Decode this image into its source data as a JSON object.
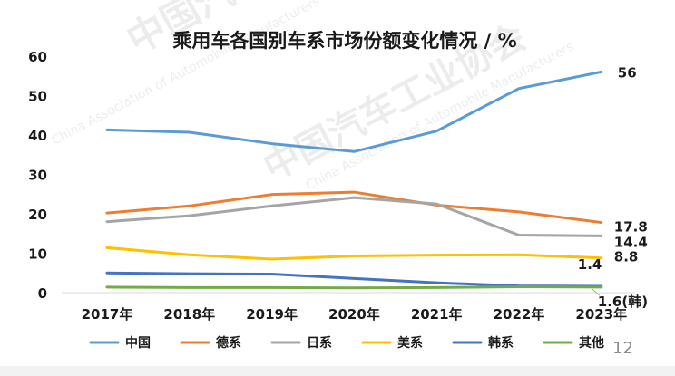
{
  "watermark": {
    "text_cn": "中国汽车工业协会",
    "text_en": "China Association of Automobile Manufacturers"
  },
  "page_number": "12",
  "chart_data": {
    "type": "line",
    "title": "乘用车各国别车系市场份额变化情况 / %",
    "categories": [
      "2017年",
      "2018年",
      "2019年",
      "2020年",
      "2021年",
      "2022年",
      "2023年"
    ],
    "ylim": [
      0,
      60
    ],
    "yticks": [
      "0",
      "10",
      "20",
      "30",
      "40",
      "50",
      "60"
    ],
    "grid": false,
    "legend_position": "bottom",
    "series": [
      {
        "name": "中国",
        "color": "#5b9bd5",
        "values": [
          41.3,
          40.7,
          37.8,
          35.8,
          41.0,
          51.8,
          56
        ]
      },
      {
        "name": "德系",
        "color": "#ed7d31",
        "values": [
          20.2,
          22.0,
          24.9,
          25.5,
          22.2,
          20.5,
          17.8
        ]
      },
      {
        "name": "日系",
        "color": "#a5a5a5",
        "values": [
          18.0,
          19.5,
          22.0,
          24.1,
          22.5,
          14.6,
          14.4
        ]
      },
      {
        "name": "美系",
        "color": "#ffc000",
        "values": [
          11.4,
          9.6,
          8.5,
          9.3,
          9.5,
          9.6,
          8.8
        ]
      },
      {
        "name": "韩系",
        "color": "#4472c4",
        "values": [
          5.0,
          4.8,
          4.7,
          3.6,
          2.5,
          1.7,
          1.6
        ]
      },
      {
        "name": "其他",
        "color": "#70ad47",
        "values": [
          1.4,
          1.3,
          1.3,
          1.2,
          1.3,
          1.5,
          1.4
        ]
      }
    ],
    "annotations": [
      {
        "series": "中国",
        "label": "56"
      },
      {
        "series": "德系",
        "label": "17.8"
      },
      {
        "series": "日系",
        "label": "14.4"
      },
      {
        "series": "美系",
        "label": "8.8"
      },
      {
        "series": "其他",
        "label": "1.4"
      },
      {
        "series": "韩系",
        "label": "1.6(韩)"
      }
    ]
  }
}
